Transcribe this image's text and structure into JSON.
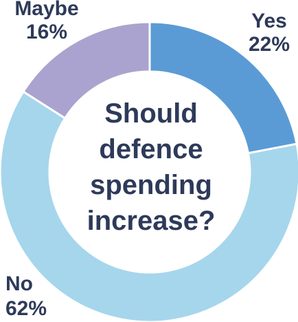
{
  "chart_data": {
    "type": "pie",
    "title_lines": [
      "Should",
      "defence",
      "spending",
      "increase?"
    ],
    "slices": [
      {
        "label": "Yes",
        "value": 22,
        "value_label": "22%",
        "color": "#5b9bd5"
      },
      {
        "label": "No",
        "value": 62,
        "value_label": "62%",
        "color": "#a6d6ec"
      },
      {
        "label": "Maybe",
        "value": 16,
        "value_label": "16%",
        "color": "#aaa3cf"
      }
    ]
  }
}
